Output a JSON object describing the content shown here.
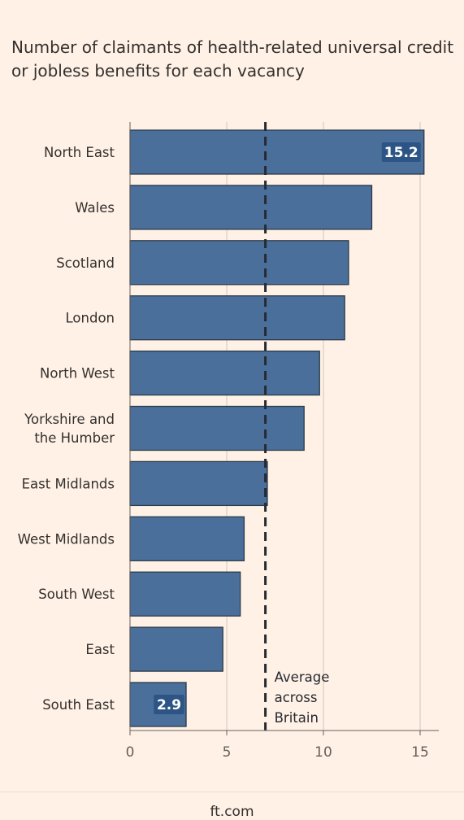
{
  "title": "Number of claimants of health-related universal credit or jobless benefits for each vacancy",
  "footer": "ft.com",
  "colors": {
    "background": "#fff1e5",
    "bar": "#4a6f9b",
    "label": "#2c5585"
  },
  "chart_data": {
    "type": "bar",
    "orientation": "horizontal",
    "title": "Number of claimants of health-related universal credit or jobless benefits for each vacancy",
    "categories": [
      "North East",
      "Wales",
      "Scotland",
      "London",
      "North West",
      "Yorkshire and the Humber",
      "East Midlands",
      "West Midlands",
      "South West",
      "East",
      "South East"
    ],
    "category_lines": [
      [
        "North East"
      ],
      [
        "Wales"
      ],
      [
        "Scotland"
      ],
      [
        "London"
      ],
      [
        "North West"
      ],
      [
        "Yorkshire and",
        "the Humber"
      ],
      [
        "East Midlands"
      ],
      [
        "West Midlands"
      ],
      [
        "South West"
      ],
      [
        "East"
      ],
      [
        "South East"
      ]
    ],
    "values": [
      15.2,
      12.5,
      11.3,
      11.1,
      9.8,
      9.0,
      7.1,
      5.9,
      5.7,
      4.8,
      2.9
    ],
    "data_labels": [
      {
        "index": 0,
        "text": "15.2"
      },
      {
        "index": 10,
        "text": "2.9"
      }
    ],
    "xlim": [
      0,
      16
    ],
    "xticks": [
      0,
      5,
      10,
      15
    ],
    "xlabel": "",
    "ylabel": "",
    "grid": true,
    "reference_line": {
      "value": 7.0,
      "style": "dashed",
      "label_lines": [
        "Average",
        "across",
        "Britain"
      ]
    }
  }
}
